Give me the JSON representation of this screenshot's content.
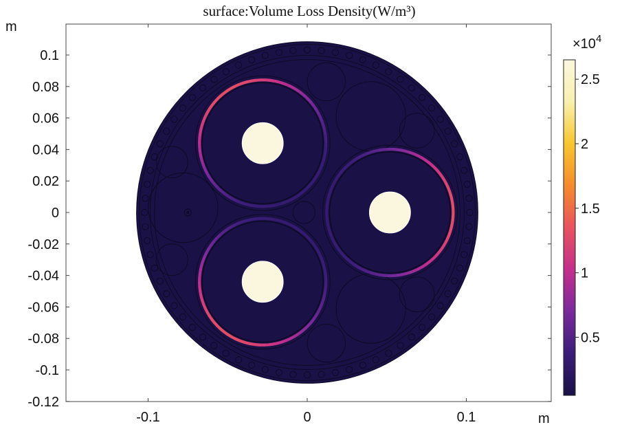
{
  "chart_data": {
    "type": "heatmap",
    "title": "surface:Volume Loss Density(W/m³)",
    "x_unit": "m",
    "y_unit": "m",
    "xlim": [
      -0.15,
      0.15
    ],
    "ylim": [
      -0.12,
      0.115
    ],
    "x_ticks": [
      -0.1,
      0,
      0.1
    ],
    "x_tick_labels": [
      "-0.1",
      "0",
      "0.1"
    ],
    "y_ticks": [
      0.1,
      0.08,
      0.06,
      0.04,
      0.02,
      0,
      -0.02,
      -0.04,
      -0.06,
      -0.08,
      -0.1,
      -0.12
    ],
    "y_tick_labels": [
      "0.1",
      "0.08",
      "0.06",
      "0.04",
      "0.02",
      "0",
      "-0.02",
      "-0.04",
      "-0.06",
      "-0.08",
      "-0.1",
      "-0.12"
    ],
    "colorbar": {
      "multiplier": "×10",
      "exponent": "4",
      "ticks": [
        0.5,
        1,
        1.5,
        2,
        2.5
      ],
      "tick_labels": [
        "0.5",
        "1",
        "1.5",
        "2",
        "2.5"
      ],
      "range": [
        0.05,
        2.65
      ],
      "colors": [
        "#1a1246",
        "#3a1d78",
        "#7a2a9c",
        "#c42e8c",
        "#e9525e",
        "#f58b2c",
        "#f8c62e",
        "#f8f0ae",
        "#fbf7df"
      ]
    },
    "cable": {
      "outer_radius": 0.108,
      "armour_wire_count": 72,
      "cores": [
        {
          "x": -0.028,
          "y": 0.044,
          "conductor_radius": 0.013,
          "sheath_radius": 0.04,
          "loss_peak": 1.3,
          "hot_side_deg": 125
        },
        {
          "x": 0.052,
          "y": 0.0,
          "conductor_radius": 0.013,
          "sheath_radius": 0.04,
          "loss_peak": 1.3,
          "hot_side_deg": 0
        },
        {
          "x": -0.028,
          "y": -0.044,
          "conductor_radius": 0.013,
          "sheath_radius": 0.04,
          "loss_peak": 1.3,
          "hot_side_deg": 235
        }
      ]
    },
    "field_value": 0.05,
    "conductor_value": 2.65
  }
}
